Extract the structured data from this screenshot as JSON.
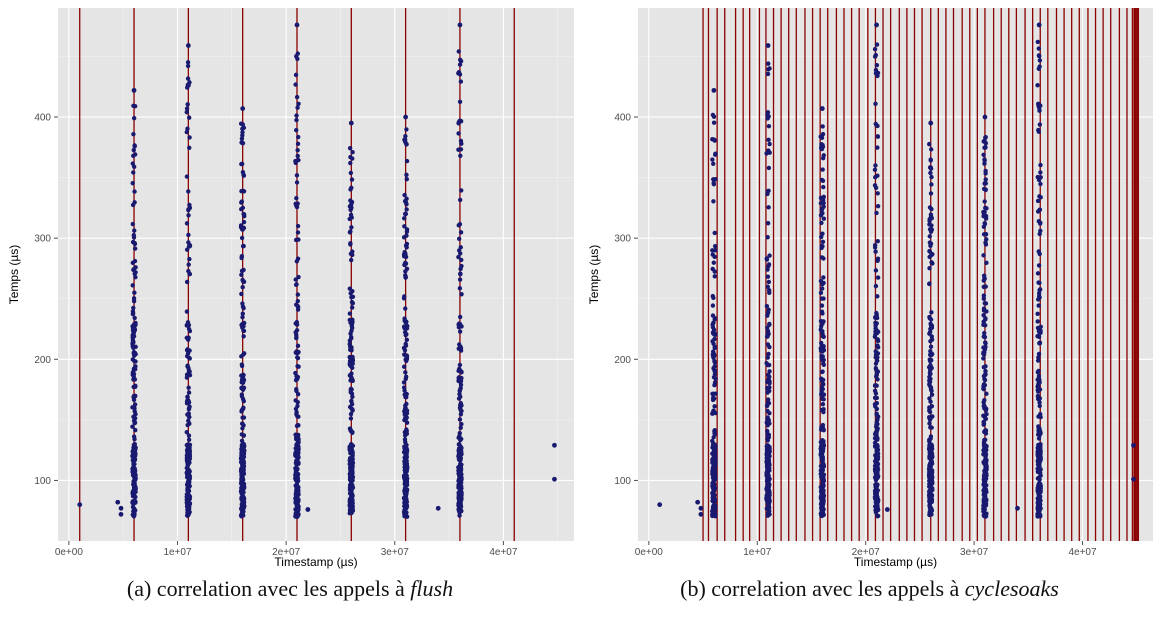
{
  "figure": {
    "panels": [
      {
        "id": "a",
        "caption_prefix": "(a) correlation avec les appels à ",
        "caption_emph": "flush"
      },
      {
        "id": "b",
        "caption_prefix": "(b) correlation avec les appels à ",
        "caption_emph": "cyclesoaks"
      }
    ]
  },
  "colors": {
    "panel_bg": "#e5e5e5",
    "grid": "#ffffff",
    "points": "#191970",
    "vlines": "#8b0000"
  },
  "chart_data": [
    {
      "type": "scatter",
      "xlabel": "Timestamp (µs)",
      "ylabel": "Temps (µs)",
      "xlim": [
        -1000000,
        46500000
      ],
      "ylim": [
        50,
        490
      ],
      "xticks": [
        0,
        10000000,
        20000000,
        30000000,
        40000000
      ],
      "xtick_labels": [
        "0e+00",
        "1e+07",
        "2e+07",
        "3e+07",
        "4e+07"
      ],
      "yticks": [
        100,
        200,
        300,
        400
      ],
      "ytick_labels": [
        "100",
        "200",
        "300",
        "400"
      ],
      "grid": true,
      "vertical_lines": [
        1000000,
        6000000,
        11000000,
        16000000,
        21000000,
        26000000,
        31000000,
        36000000,
        41000000
      ],
      "clusters": [
        {
          "x": 6000000,
          "max": 422
        },
        {
          "x": 11000000,
          "max": 459
        },
        {
          "x": 16000000,
          "max": 407
        },
        {
          "x": 21000000,
          "max": 476
        },
        {
          "x": 26000000,
          "max": 395
        },
        {
          "x": 31000000,
          "max": 400
        },
        {
          "x": 36000000,
          "max": 476
        }
      ],
      "outliers": [
        [
          1000000,
          80
        ],
        [
          4500000,
          82
        ],
        [
          4800000,
          77
        ],
        [
          4800000,
          72
        ],
        [
          22000000,
          76
        ],
        [
          34000000,
          77
        ],
        [
          44700000,
          129
        ],
        [
          44700000,
          101
        ]
      ]
    },
    {
      "type": "scatter",
      "xlabel": "Timestamp (µs)",
      "ylabel": "Temps (µs)",
      "xlim": [
        -1000000,
        46500000
      ],
      "ylim": [
        50,
        490
      ],
      "xticks": [
        0,
        10000000,
        20000000,
        30000000,
        40000000
      ],
      "xtick_labels": [
        "0e+00",
        "1e+07",
        "2e+07",
        "3e+07",
        "4e+07"
      ],
      "yticks": [
        100,
        200,
        300,
        400
      ],
      "ytick_labels": [
        "100",
        "200",
        "300",
        "400"
      ],
      "grid": true,
      "vertical_lines": [
        5000000,
        5500000,
        6300000,
        7000000,
        8000000,
        8700000,
        9300000,
        10200000,
        10800000,
        11500000,
        12200000,
        12900000,
        13600000,
        14400000,
        15100000,
        15800000,
        16500000,
        17300000,
        18000000,
        18700000,
        19400000,
        20200000,
        20900000,
        21600000,
        22300000,
        23100000,
        23800000,
        24500000,
        25200000,
        26000000,
        26700000,
        27400000,
        28100000,
        28900000,
        29600000,
        30300000,
        31000000,
        31800000,
        32500000,
        33200000,
        33900000,
        34700000,
        35400000,
        36100000,
        36800000,
        37600000,
        38300000,
        39000000,
        39700000,
        40500000,
        41200000,
        41900000,
        42600000,
        43400000,
        44100000,
        44600000,
        44750000,
        44850000,
        44950000,
        45050000,
        45150000
      ],
      "clusters": [
        {
          "x": 6000000,
          "max": 422
        },
        {
          "x": 11000000,
          "max": 459
        },
        {
          "x": 16000000,
          "max": 407
        },
        {
          "x": 21000000,
          "max": 476
        },
        {
          "x": 26000000,
          "max": 395
        },
        {
          "x": 31000000,
          "max": 400
        },
        {
          "x": 36000000,
          "max": 476
        }
      ],
      "outliers": [
        [
          1000000,
          80
        ],
        [
          4500000,
          82
        ],
        [
          4800000,
          77
        ],
        [
          4800000,
          72
        ],
        [
          22000000,
          76
        ],
        [
          34000000,
          77
        ],
        [
          44700000,
          129
        ],
        [
          44700000,
          101
        ]
      ]
    }
  ]
}
